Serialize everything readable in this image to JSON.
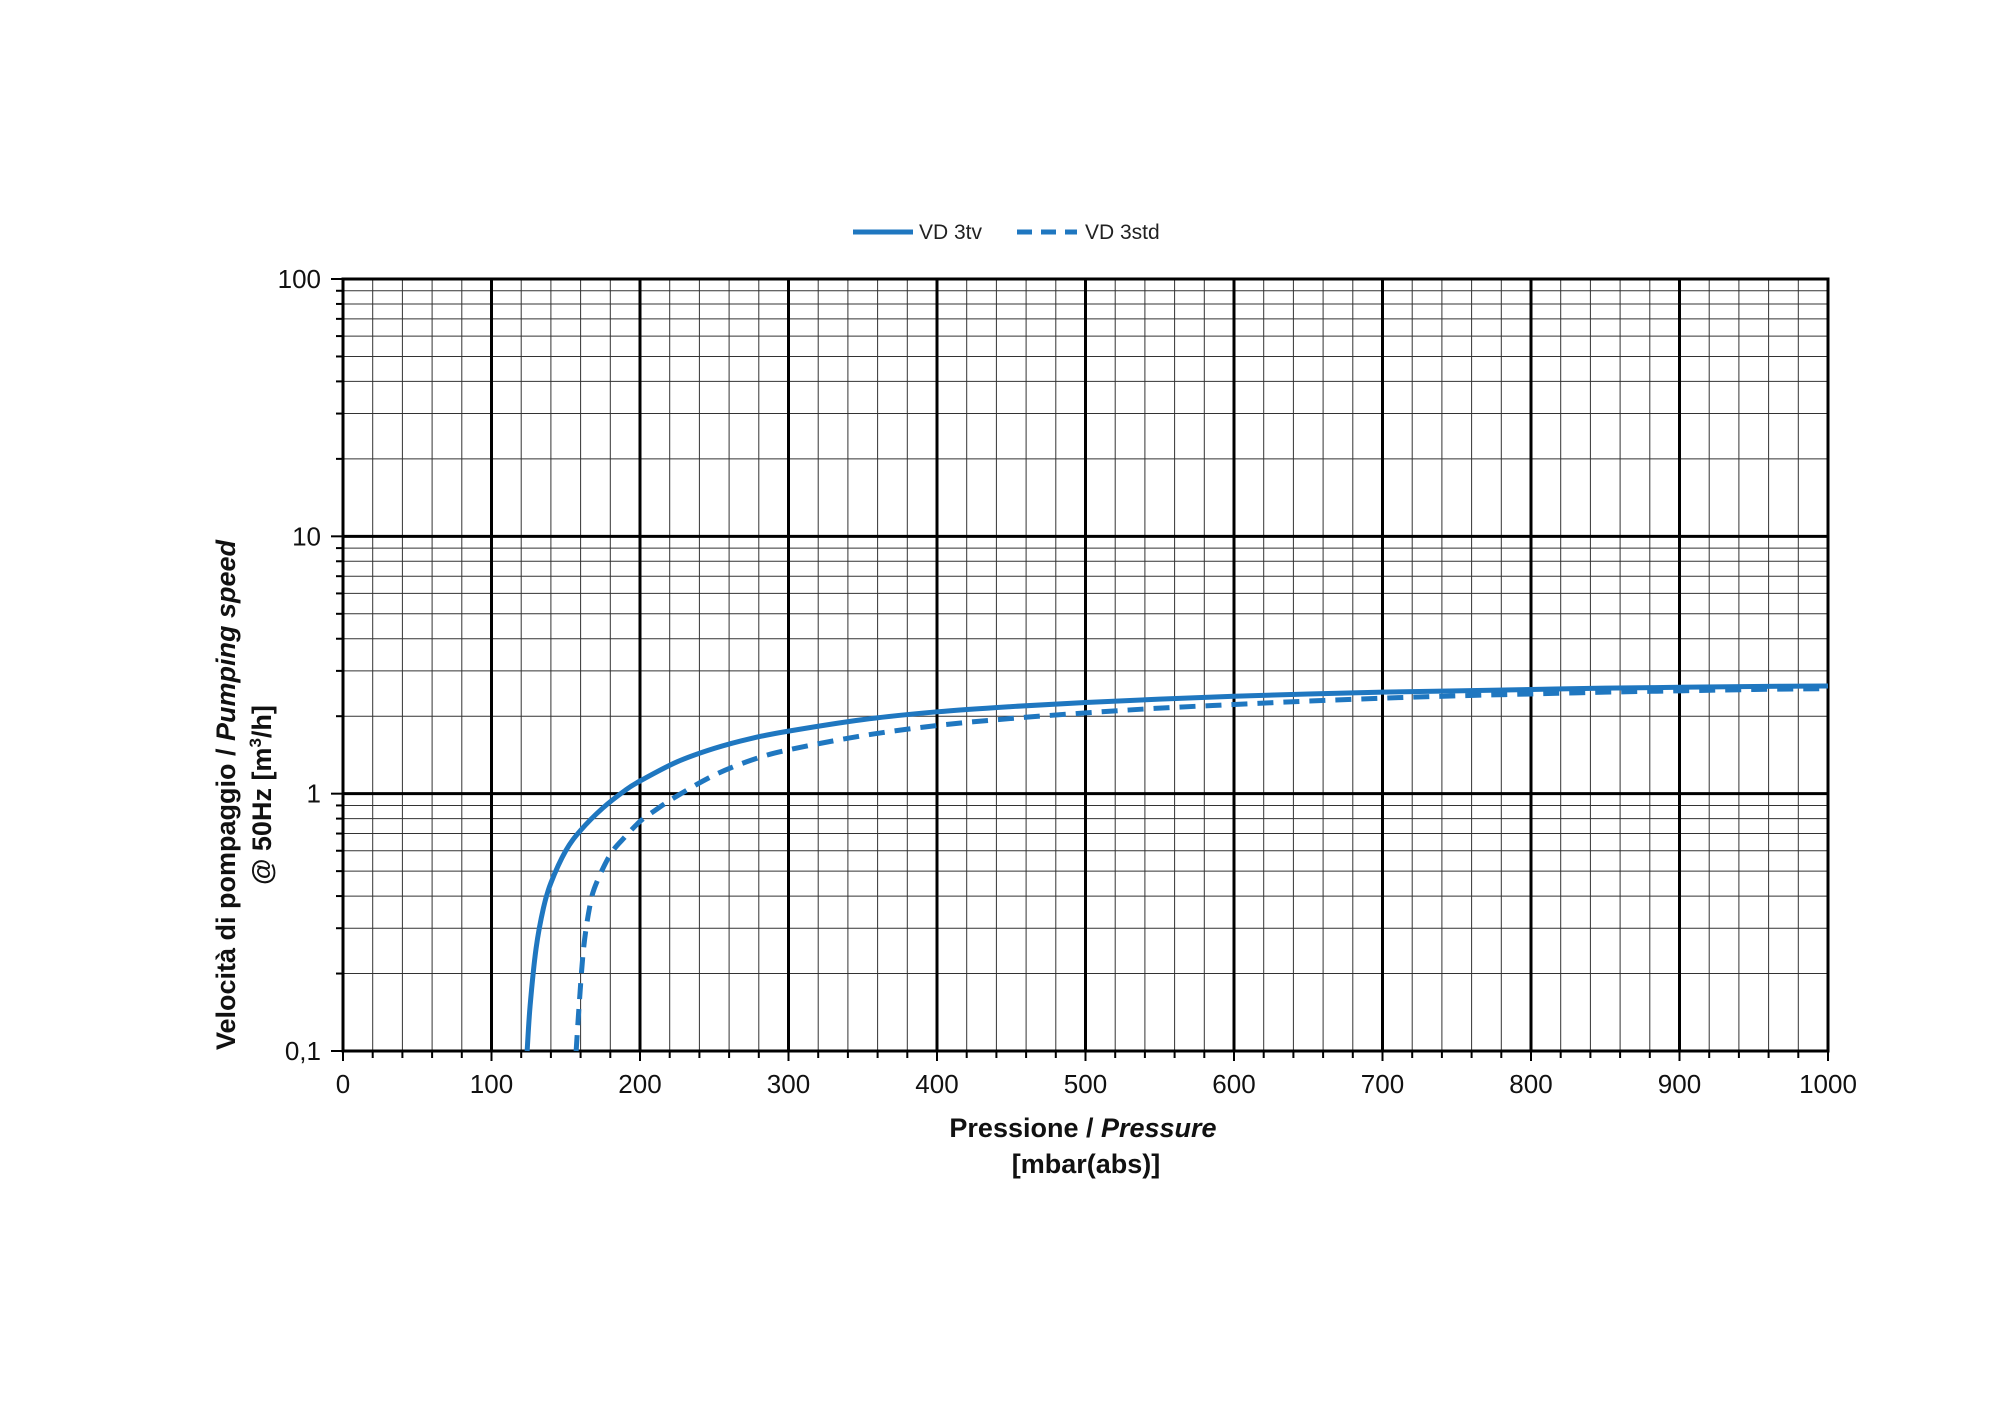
{
  "chart_data": {
    "type": "line",
    "x_scale": "linear",
    "y_scale": "log",
    "xlim": [
      0,
      1000
    ],
    "ylim": [
      0.1,
      100
    ],
    "grid": true,
    "legend_position": "top-center",
    "x_ticks": [
      "0",
      "100",
      "200",
      "300",
      "400",
      "500",
      "600",
      "700",
      "800",
      "900",
      "1000"
    ],
    "y_ticks": [
      "0,1",
      "1",
      "10",
      "100"
    ],
    "xlabel": {
      "line1_normal": "Pressione / ",
      "line1_italic": "Pressure",
      "line2": "[mbar(abs)]"
    },
    "ylabel": {
      "line1_normal": "Velocità di pompaggio / ",
      "line1_italic": "Pumping speed",
      "line2_prefix": "@ 50Hz [m",
      "line2_sup": "3",
      "line2_suffix": "/h]"
    },
    "series": [
      {
        "name": "VD 3tv",
        "style": "solid",
        "color": "#1f77c0",
        "x": [
          124,
          126,
          130,
          135,
          140,
          150,
          160,
          175,
          190,
          200,
          225,
          250,
          275,
          300,
          350,
          400,
          450,
          500,
          550,
          600,
          650,
          700,
          750,
          800,
          850,
          900,
          950,
          1000
        ],
        "y": [
          0.1,
          0.15,
          0.25,
          0.36,
          0.45,
          0.6,
          0.72,
          0.88,
          1.03,
          1.12,
          1.33,
          1.5,
          1.64,
          1.75,
          1.94,
          2.08,
          2.18,
          2.26,
          2.33,
          2.39,
          2.44,
          2.48,
          2.51,
          2.54,
          2.57,
          2.59,
          2.61,
          2.62
        ]
      },
      {
        "name": "VD 3std",
        "style": "dashed",
        "color": "#1f77c0",
        "x": [
          157,
          159,
          162,
          166,
          170,
          180,
          190,
          200,
          210,
          225,
          250,
          275,
          300,
          350,
          400,
          450,
          500,
          550,
          600,
          650,
          700,
          750,
          800,
          850,
          900,
          950,
          1000
        ],
        "y": [
          0.1,
          0.15,
          0.25,
          0.36,
          0.44,
          0.58,
          0.68,
          0.78,
          0.86,
          0.98,
          1.18,
          1.35,
          1.48,
          1.68,
          1.84,
          1.96,
          2.06,
          2.15,
          2.22,
          2.29,
          2.35,
          2.4,
          2.44,
          2.48,
          2.51,
          2.54,
          2.56
        ]
      }
    ]
  }
}
